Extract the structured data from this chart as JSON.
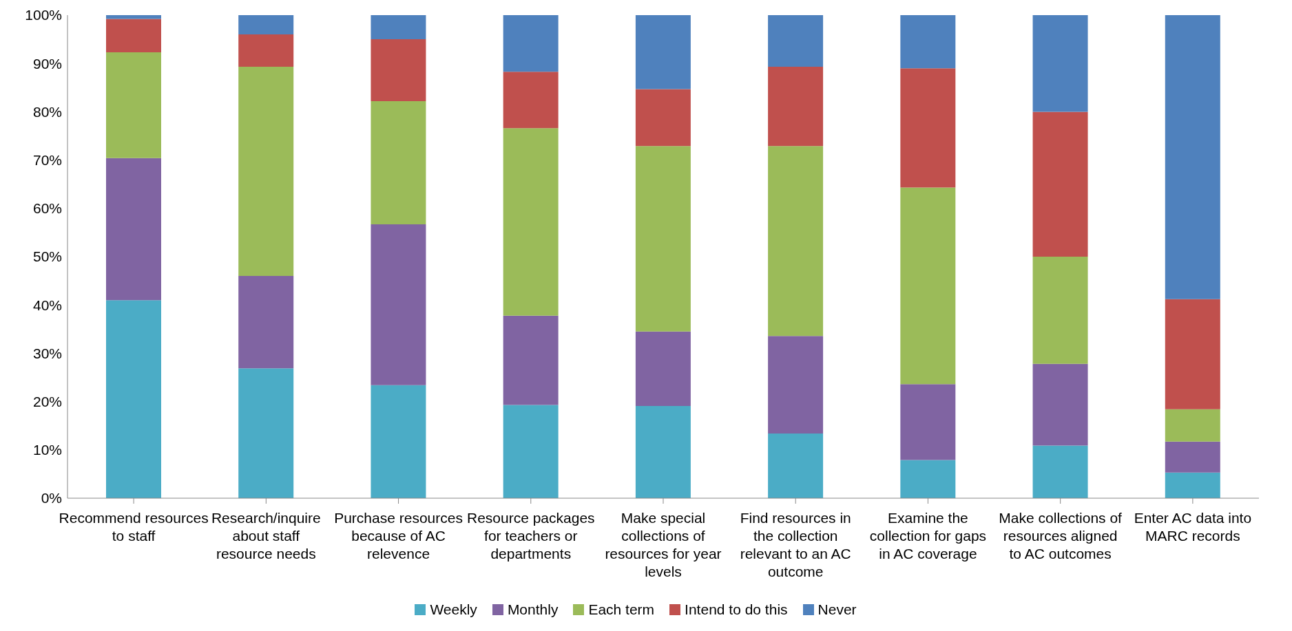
{
  "chart_data": {
    "type": "bar",
    "stacked": true,
    "categories": [
      "Recommend resources to staff",
      "Research/inquire about staff resource needs",
      "Purchase resources because of AC relevence",
      "Resource packages for teachers or departments",
      "Make special collections of resources for year levels",
      "Find resources in the collection relevant to an AC outcome",
      "Examine the collection for gaps in AC coverage",
      "Make collections of resources aligned to AC outcomes",
      "Enter AC data into MARC records"
    ],
    "series": [
      {
        "name": "Weekly",
        "color": "#4bacc6",
        "values": [
          41,
          26.9,
          23.4,
          19.3,
          19.1,
          13.4,
          7.9,
          10.9,
          5.3
        ]
      },
      {
        "name": "Monthly",
        "color": "#8064a2",
        "values": [
          29.4,
          19.1,
          33.3,
          18.5,
          15.4,
          20.2,
          15.7,
          16.9,
          6.4
        ]
      },
      {
        "name": "Each term",
        "color": "#9bbb59",
        "values": [
          21.9,
          43.3,
          25.5,
          38.8,
          38.4,
          39.3,
          40.7,
          22.2,
          6.7
        ]
      },
      {
        "name": "Intend to do this",
        "color": "#c0504d",
        "values": [
          6.9,
          6.7,
          12.8,
          11.7,
          11.8,
          16.4,
          24.7,
          30,
          22.8
        ]
      },
      {
        "name": "Never",
        "color": "#4f81bd",
        "values": [
          0.8,
          4,
          5,
          11.7,
          15.3,
          10.7,
          11,
          20,
          58.8
        ]
      }
    ],
    "ylim": [
      0,
      100
    ],
    "yticks": [
      {
        "value": 0,
        "label": "0%"
      },
      {
        "value": 10,
        "label": "10%"
      },
      {
        "value": 20,
        "label": "20%"
      },
      {
        "value": 30,
        "label": "30%"
      },
      {
        "value": 40,
        "label": "40%"
      },
      {
        "value": 50,
        "label": "50%"
      },
      {
        "value": 60,
        "label": "60%"
      },
      {
        "value": 70,
        "label": "70%"
      },
      {
        "value": 80,
        "label": "80%"
      },
      {
        "value": 90,
        "label": "90%"
      },
      {
        "value": 100,
        "label": "100%"
      }
    ],
    "grid": false,
    "legend": "bottom"
  }
}
